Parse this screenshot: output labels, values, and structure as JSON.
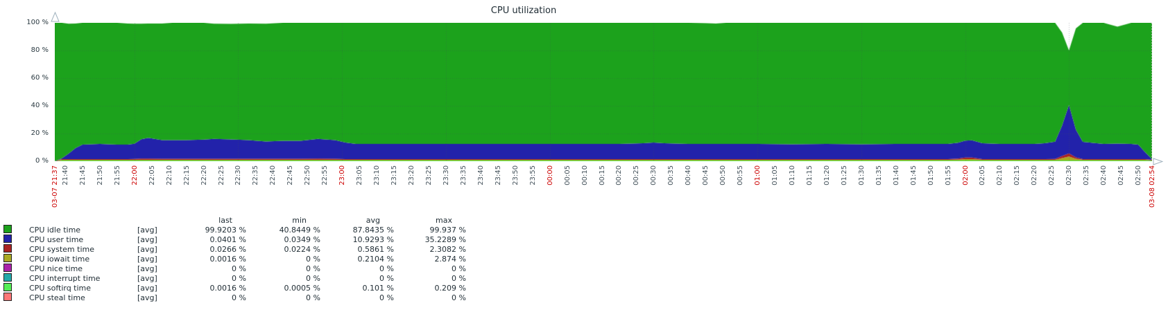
{
  "title": "CPU utilization",
  "y_axis": {
    "labels": [
      {
        "pct": 100,
        "text": "100 %"
      },
      {
        "pct": 80,
        "text": "80 %"
      },
      {
        "pct": 60,
        "text": "60 %"
      },
      {
        "pct": 40,
        "text": "40 %"
      },
      {
        "pct": 20,
        "text": "20 %"
      },
      {
        "pct": 0,
        "text": "0 %"
      }
    ]
  },
  "x_axis": {
    "labels": [
      {
        "t": 0,
        "text": "03-07 21:37",
        "red": true
      },
      {
        "t": 3,
        "text": "21:40",
        "red": false
      },
      {
        "t": 8,
        "text": "21:45",
        "red": false
      },
      {
        "t": 13,
        "text": "21:50",
        "red": false
      },
      {
        "t": 18,
        "text": "21:55",
        "red": false
      },
      {
        "t": 23,
        "text": "22:00",
        "red": true
      },
      {
        "t": 28,
        "text": "22:05",
        "red": false
      },
      {
        "t": 33,
        "text": "22:10",
        "red": false
      },
      {
        "t": 38,
        "text": "22:15",
        "red": false
      },
      {
        "t": 43,
        "text": "22:20",
        "red": false
      },
      {
        "t": 48,
        "text": "22:25",
        "red": false
      },
      {
        "t": 53,
        "text": "22:30",
        "red": false
      },
      {
        "t": 58,
        "text": "22:35",
        "red": false
      },
      {
        "t": 63,
        "text": "22:40",
        "red": false
      },
      {
        "t": 68,
        "text": "22:45",
        "red": false
      },
      {
        "t": 73,
        "text": "22:50",
        "red": false
      },
      {
        "t": 78,
        "text": "22:55",
        "red": false
      },
      {
        "t": 83,
        "text": "23:00",
        "red": true
      },
      {
        "t": 88,
        "text": "23:05",
        "red": false
      },
      {
        "t": 93,
        "text": "23:10",
        "red": false
      },
      {
        "t": 98,
        "text": "23:15",
        "red": false
      },
      {
        "t": 103,
        "text": "23:20",
        "red": false
      },
      {
        "t": 108,
        "text": "23:25",
        "red": false
      },
      {
        "t": 113,
        "text": "23:30",
        "red": false
      },
      {
        "t": 118,
        "text": "23:35",
        "red": false
      },
      {
        "t": 123,
        "text": "23:40",
        "red": false
      },
      {
        "t": 128,
        "text": "23:45",
        "red": false
      },
      {
        "t": 133,
        "text": "23:50",
        "red": false
      },
      {
        "t": 138,
        "text": "23:55",
        "red": false
      },
      {
        "t": 143,
        "text": "00:00",
        "red": true
      },
      {
        "t": 148,
        "text": "00:05",
        "red": false
      },
      {
        "t": 153,
        "text": "00:10",
        "red": false
      },
      {
        "t": 158,
        "text": "00:15",
        "red": false
      },
      {
        "t": 163,
        "text": "00:20",
        "red": false
      },
      {
        "t": 168,
        "text": "00:25",
        "red": false
      },
      {
        "t": 173,
        "text": "00:30",
        "red": false
      },
      {
        "t": 178,
        "text": "00:35",
        "red": false
      },
      {
        "t": 183,
        "text": "00:40",
        "red": false
      },
      {
        "t": 188,
        "text": "00:45",
        "red": false
      },
      {
        "t": 193,
        "text": "00:50",
        "red": false
      },
      {
        "t": 198,
        "text": "00:55",
        "red": false
      },
      {
        "t": 203,
        "text": "01:00",
        "red": true
      },
      {
        "t": 208,
        "text": "01:05",
        "red": false
      },
      {
        "t": 213,
        "text": "01:10",
        "red": false
      },
      {
        "t": 218,
        "text": "01:15",
        "red": false
      },
      {
        "t": 223,
        "text": "01:20",
        "red": false
      },
      {
        "t": 228,
        "text": "01:25",
        "red": false
      },
      {
        "t": 233,
        "text": "01:30",
        "red": false
      },
      {
        "t": 238,
        "text": "01:35",
        "red": false
      },
      {
        "t": 243,
        "text": "01:40",
        "red": false
      },
      {
        "t": 248,
        "text": "01:45",
        "red": false
      },
      {
        "t": 253,
        "text": "01:50",
        "red": false
      },
      {
        "t": 258,
        "text": "01:55",
        "red": false
      },
      {
        "t": 263,
        "text": "02:00",
        "red": true
      },
      {
        "t": 268,
        "text": "02:05",
        "red": false
      },
      {
        "t": 273,
        "text": "02:10",
        "red": false
      },
      {
        "t": 278,
        "text": "02:15",
        "red": false
      },
      {
        "t": 283,
        "text": "02:20",
        "red": false
      },
      {
        "t": 288,
        "text": "02:25",
        "red": false
      },
      {
        "t": 293,
        "text": "02:30",
        "red": false
      },
      {
        "t": 298,
        "text": "02:35",
        "red": false
      },
      {
        "t": 303,
        "text": "02:40",
        "red": false
      },
      {
        "t": 308,
        "text": "02:45",
        "red": false
      },
      {
        "t": 313,
        "text": "02:50",
        "red": false
      },
      {
        "t": 317,
        "text": "03-08 02:54",
        "red": true
      }
    ]
  },
  "legend": {
    "headers": [
      "last",
      "min",
      "avg",
      "max"
    ],
    "rows": [
      {
        "name": "CPU idle time",
        "fn": "[avg]",
        "color": "#1CA21C",
        "last": "99.9203 %",
        "min": "40.8449 %",
        "avg": "87.8435 %",
        "max": "99.937 %"
      },
      {
        "name": "CPU user time",
        "fn": "[avg]",
        "color": "#2222AA",
        "last": "0.0401 %",
        "min": "0.0349 %",
        "avg": "10.9293 %",
        "max": "35.2289 %"
      },
      {
        "name": "CPU system time",
        "fn": "[avg]",
        "color": "#AA2222",
        "last": "0.0266 %",
        "min": "0.0224 %",
        "avg": "0.5861 %",
        "max": "2.3082 %"
      },
      {
        "name": "CPU iowait time",
        "fn": "[avg]",
        "color": "#AAAA22",
        "last": "0.0016 %",
        "min": "0 %",
        "avg": "0.2104 %",
        "max": "2.874 %"
      },
      {
        "name": "CPU nice time",
        "fn": "[avg]",
        "color": "#AA22AA",
        "last": "0 %",
        "min": "0 %",
        "avg": "0 %",
        "max": "0 %"
      },
      {
        "name": "CPU interrupt time",
        "fn": "[avg]",
        "color": "#22AAAA",
        "last": "0 %",
        "min": "0 %",
        "avg": "0 %",
        "max": "0 %"
      },
      {
        "name": "CPU softirq time",
        "fn": "[avg]",
        "color": "#55EE55",
        "last": "0.0016 %",
        "min": "0.0005 %",
        "avg": "0.101 %",
        "max": "0.209 %"
      },
      {
        "name": "CPU steal time",
        "fn": "[avg]",
        "color": "#FF7777",
        "last": "0 %",
        "min": "0 %",
        "avg": "0 %",
        "max": "0 %"
      }
    ]
  },
  "chart_data": {
    "type": "area",
    "stacked": true,
    "title": "CPU utilization",
    "ylabel": "%",
    "ylim": [
      0,
      100
    ],
    "time_start": "03-07 21:37",
    "time_end": "03-08 02:54",
    "t_max": 317,
    "t_minutes": [
      0,
      2,
      4,
      6,
      8,
      13,
      18,
      21,
      23,
      25,
      27,
      31,
      34,
      38,
      43,
      46,
      51,
      56,
      61,
      66,
      71,
      76,
      81,
      84,
      87,
      93,
      103,
      113,
      123,
      133,
      143,
      153,
      163,
      170,
      173,
      176,
      183,
      188,
      191,
      194,
      203,
      213,
      223,
      233,
      243,
      253,
      258,
      261,
      263,
      265,
      268,
      273,
      278,
      283,
      286,
      289,
      291,
      293,
      295,
      297,
      299,
      303,
      307,
      311,
      313,
      315,
      317
    ],
    "series": [
      {
        "name": "steal",
        "label": "CPU steal time",
        "color": "#FF7777",
        "values": 0
      },
      {
        "name": "softirq",
        "label": "CPU softirq time",
        "color": "#55EE55",
        "values": [
          0,
          0.15,
          0.15,
          0.15,
          0.15,
          0.15,
          0.15,
          0.15,
          0.15,
          0.15,
          0.15,
          0.15,
          0.15,
          0.15,
          0.15,
          0.15,
          0.15,
          0.15,
          0.15,
          0.15,
          0.15,
          0.15,
          0.15,
          0.15,
          0.15,
          0.15,
          0.15,
          0.15,
          0.15,
          0.15,
          0.15,
          0.15,
          0.15,
          0.15,
          0.15,
          0.15,
          0.15,
          0.15,
          0.15,
          0.15,
          0.15,
          0.15,
          0.15,
          0.15,
          0.15,
          0.15,
          0.15,
          0.15,
          0.15,
          0.15,
          0.15,
          0.15,
          0.15,
          0.15,
          0.15,
          0.15,
          0.15,
          0.15,
          0.15,
          0.15,
          0.15,
          0.15,
          0.15,
          0.15,
          0.15,
          0.1,
          0.05
        ]
      },
      {
        "name": "interrupt",
        "label": "CPU interrupt time",
        "color": "#22AAAA",
        "values": 0
      },
      {
        "name": "nice",
        "label": "CPU nice time",
        "color": "#AA22AA",
        "values": 0
      },
      {
        "name": "iowait",
        "label": "CPU iowait time",
        "color": "#AAAA22",
        "values": [
          0,
          0.02,
          0.02,
          0.02,
          0.02,
          0.02,
          0.02,
          0.02,
          0.03,
          0.03,
          0.03,
          0.02,
          0.02,
          0.02,
          0.02,
          0.02,
          0.02,
          0.02,
          0.02,
          0.02,
          0.02,
          0.02,
          0.02,
          0.02,
          0.02,
          0.02,
          0.02,
          0.02,
          0.02,
          0.02,
          0.02,
          0.02,
          0.02,
          0.02,
          0.02,
          0.02,
          0.02,
          0.02,
          0.02,
          0.02,
          0.02,
          0.02,
          0.02,
          0.02,
          0.02,
          0.02,
          0.05,
          0.6,
          1.0,
          1.0,
          0.2,
          0.05,
          0.05,
          0.05,
          0.1,
          0.4,
          1.8,
          2.87,
          1.2,
          0.3,
          0.1,
          0.05,
          0.05,
          0.05,
          0.03,
          0.02,
          0
        ]
      },
      {
        "name": "system",
        "label": "CPU system time",
        "color": "#AA2222",
        "values": [
          0,
          0.2,
          0.3,
          0.35,
          0.4,
          0.4,
          0.4,
          0.5,
          0.6,
          0.85,
          0.9,
          0.8,
          0.8,
          0.8,
          0.8,
          0.8,
          0.8,
          0.8,
          0.8,
          0.8,
          0.8,
          0.85,
          0.8,
          0.5,
          0.4,
          0.4,
          0.4,
          0.4,
          0.4,
          0.4,
          0.4,
          0.4,
          0.4,
          0.4,
          0.45,
          0.4,
          0.4,
          0.4,
          0.4,
          0.4,
          0.4,
          0.4,
          0.4,
          0.4,
          0.4,
          0.4,
          0.45,
          0.8,
          1.1,
          1.1,
          0.5,
          0.4,
          0.4,
          0.4,
          0.45,
          0.6,
          1.4,
          2.3,
          1.1,
          0.5,
          0.45,
          0.4,
          0.4,
          0.4,
          0.35,
          0.2,
          0.03
        ]
      },
      {
        "name": "user",
        "label": "CPU user time",
        "color": "#2222AA",
        "values": [
          0,
          0.5,
          4,
          8,
          10.5,
          11,
          10.5,
          10.5,
          11,
          14,
          15,
          13.5,
          13.5,
          13.5,
          13.8,
          14.3,
          14,
          13.5,
          12.5,
          13,
          13,
          14.3,
          13.5,
          12,
          11,
          11,
          11,
          11,
          11,
          11,
          11,
          11,
          11,
          11.5,
          12,
          11.5,
          11,
          11,
          11,
          11,
          11,
          10.8,
          11,
          10.8,
          11,
          11,
          11,
          11.5,
          12.3,
          12.5,
          11.5,
          11,
          11,
          11,
          11.5,
          12.5,
          22,
          35,
          20,
          12.5,
          12,
          11,
          11.3,
          11,
          10.5,
          5,
          0.05
        ]
      },
      {
        "name": "idle",
        "label": "CPU idle time",
        "color": "#1CA21C",
        "fill_to_total_top": true
      }
    ],
    "total_top": [
      100,
      100,
      99.4,
      99.5,
      100,
      100,
      100,
      99.5,
      99.4,
      99.4,
      99.5,
      99.5,
      100,
      100,
      100,
      99.4,
      99.3,
      99.5,
      99.4,
      100,
      100,
      100,
      100,
      100,
      100,
      100,
      100,
      100,
      100,
      100,
      100,
      100,
      100,
      100,
      100,
      100,
      100,
      99.7,
      99.5,
      100,
      100,
      100,
      100,
      100,
      100,
      100,
      100,
      100,
      100,
      100,
      100,
      100,
      100,
      100,
      100,
      100,
      93,
      80,
      96,
      100,
      100,
      100,
      97.2,
      100,
      100,
      100,
      100
    ],
    "grid": {
      "h_pct": [
        20,
        40,
        60,
        80
      ],
      "v_t": [
        23,
        53,
        83,
        113,
        143,
        173,
        203,
        233,
        263,
        293
      ]
    }
  }
}
